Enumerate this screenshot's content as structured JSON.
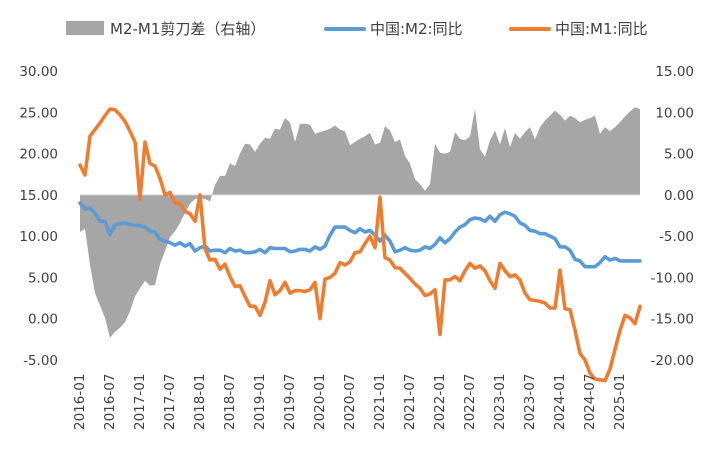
{
  "chart_data": {
    "type": "line",
    "legend_position": "top",
    "legend": [
      {
        "label": "M2-M1剪刀差（右轴）",
        "kind": "area",
        "color": "#A6A6A6"
      },
      {
        "label": "中国:M2:同比",
        "kind": "line",
        "color": "#5B9BD5"
      },
      {
        "label": "中国:M1:同比",
        "kind": "line",
        "color": "#ED7D31"
      }
    ],
    "left_axis": {
      "min": -5,
      "max": 30,
      "ticks": [
        "30.00",
        "25.00",
        "20.00",
        "15.00",
        "10.00",
        "5.00",
        "0.00",
        "-5.00"
      ]
    },
    "right_axis": {
      "min": -20,
      "max": 15,
      "ticks": [
        "15.00",
        "10.00",
        "5.00",
        "0.00",
        "-5.00",
        "-10.00",
        "-15.00",
        "-20.00"
      ]
    },
    "x_tick_labels": [
      "2016-01",
      "2016-07",
      "2017-01",
      "2017-07",
      "2018-01",
      "2018-07",
      "2019-01",
      "2019-07",
      "2020-01",
      "2020-07",
      "2021-01",
      "2021-07",
      "2022-01",
      "2022-07",
      "2023-01",
      "2023-07",
      "2024-01",
      "2024-07",
      "2025-01"
    ],
    "months": 113,
    "series": [
      {
        "name": "M2-M1剪刀差（右轴）",
        "axis": "right",
        "color": "#A6A6A6",
        "values": [
          -4.5,
          -4.1,
          -8.5,
          -11.9,
          -13.4,
          -14.9,
          -17.3,
          -16.6,
          -16.1,
          -15.4,
          -14.1,
          -12.3,
          -11.3,
          -10.4,
          -11.0,
          -10.9,
          -8.4,
          -6.8,
          -5.1,
          -4.4,
          -3.4,
          -2.2,
          -1.1,
          -0.5,
          -0.4,
          -0.5,
          -0.8,
          1.2,
          2.3,
          2.3,
          3.8,
          3.5,
          5.0,
          6.2,
          6.1,
          5.2,
          6.2,
          6.9,
          6.8,
          8.0,
          7.9,
          9.3,
          8.8,
          6.4,
          8.6,
          8.6,
          8.5,
          7.4,
          7.6,
          7.8,
          8.0,
          8.4,
          7.9,
          7.7,
          6.0,
          6.4,
          6.8,
          7.1,
          7.5,
          6.1,
          6.3,
          8.3,
          7.8,
          6.4,
          6.7,
          4.7,
          3.8,
          1.9,
          1.3,
          0.5,
          1.3,
          6.2,
          5.1,
          5.0,
          5.2,
          7.6,
          6.8,
          6.6,
          7.1,
          10.4,
          5.5,
          4.6,
          6.6,
          7.8,
          6.1,
          8.1,
          5.8,
          7.5,
          6.8,
          7.6,
          8.2,
          6.7,
          8.2,
          9.0,
          9.6,
          10.2,
          9.7,
          9.0,
          9.6,
          9.3,
          8.8,
          9.1,
          9.3,
          9.6,
          7.4,
          8.2,
          7.7,
          8.2,
          8.8,
          9.5,
          10.1,
          10.6,
          10.4
        ]
      },
      {
        "name": "中国:M2:同比",
        "axis": "left",
        "color": "#5B9BD5",
        "values": [
          14.0,
          13.3,
          13.4,
          12.8,
          11.8,
          11.8,
          10.2,
          11.4,
          11.5,
          11.6,
          11.4,
          11.3,
          11.3,
          11.1,
          10.6,
          10.5,
          9.6,
          9.4,
          9.2,
          8.9,
          9.2,
          8.8,
          9.1,
          8.2,
          8.6,
          8.8,
          8.2,
          8.3,
          8.3,
          8.0,
          8.5,
          8.2,
          8.3,
          8.0,
          8.0,
          8.1,
          8.4,
          8.0,
          8.6,
          8.5,
          8.5,
          8.5,
          8.1,
          8.2,
          8.4,
          8.4,
          8.2,
          8.7,
          8.4,
          8.8,
          10.1,
          11.1,
          11.1,
          11.1,
          10.7,
          10.4,
          10.9,
          10.5,
          10.7,
          10.1,
          9.4,
          10.1,
          9.4,
          8.1,
          8.3,
          8.6,
          8.3,
          8.2,
          8.3,
          8.7,
          8.5,
          9.0,
          9.8,
          9.2,
          9.7,
          10.5,
          11.1,
          11.4,
          12.0,
          12.2,
          12.1,
          11.8,
          12.4,
          11.8,
          12.6,
          12.9,
          12.7,
          12.4,
          11.6,
          11.3,
          10.7,
          10.6,
          10.3,
          10.3,
          10.0,
          9.7,
          8.7,
          8.7,
          8.3,
          7.2,
          7.0,
          6.3,
          6.3,
          6.3,
          6.8,
          7.5,
          7.1,
          7.3,
          7.0,
          7.0,
          7.0,
          7.0,
          7.0
        ]
      },
      {
        "name": "中国:M1:同比",
        "axis": "left",
        "color": "#ED7D31",
        "values": [
          18.6,
          17.4,
          22.1,
          22.9,
          23.7,
          24.6,
          25.4,
          25.3,
          24.7,
          23.9,
          22.7,
          21.4,
          14.5,
          21.4,
          18.8,
          18.5,
          17.0,
          15.0,
          15.3,
          14.0,
          14.0,
          13.0,
          12.7,
          11.8,
          15.0,
          8.5,
          7.1,
          7.2,
          6.0,
          6.6,
          5.1,
          3.9,
          4.0,
          2.7,
          1.5,
          1.5,
          0.4,
          2.0,
          4.6,
          2.9,
          3.4,
          4.4,
          3.1,
          3.4,
          3.4,
          3.3,
          3.5,
          4.4,
          0.0,
          4.8,
          5.0,
          5.5,
          6.8,
          6.5,
          6.9,
          8.0,
          8.1,
          9.1,
          10.0,
          8.6,
          14.7,
          7.4,
          7.1,
          6.2,
          6.1,
          5.5,
          4.9,
          4.2,
          3.7,
          2.8,
          3.0,
          3.5,
          -1.9,
          4.7,
          4.7,
          5.1,
          4.6,
          5.8,
          6.7,
          6.1,
          6.4,
          5.8,
          4.6,
          3.7,
          6.7,
          5.8,
          5.1,
          5.3,
          4.7,
          3.1,
          2.3,
          2.2,
          2.1,
          1.9,
          1.3,
          1.3,
          5.9,
          1.2,
          1.1,
          -1.4,
          -4.2,
          -5.0,
          -6.6,
          -7.3,
          -7.4,
          -7.5,
          -6.1,
          -3.7,
          -1.4,
          0.4,
          0.1,
          -0.6,
          1.5
        ]
      }
    ]
  }
}
